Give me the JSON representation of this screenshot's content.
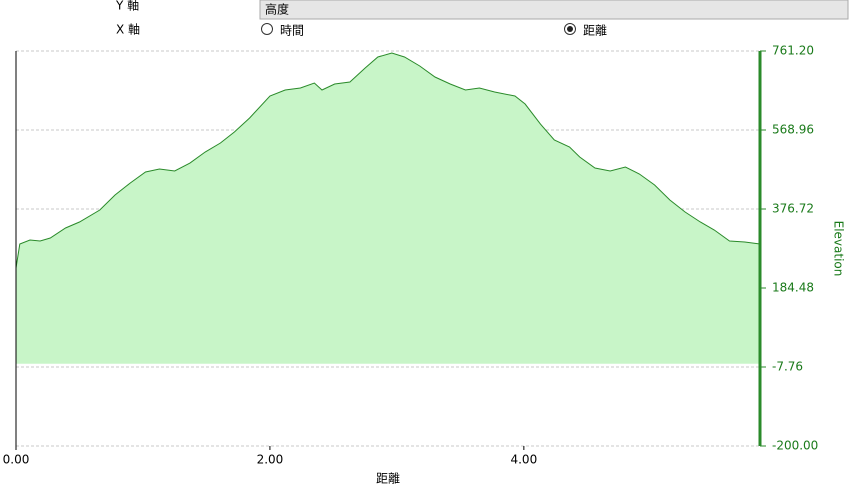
{
  "controls": {
    "y_axis": {
      "label": "Y 軸",
      "value": "高度"
    },
    "x_axis": {
      "label": "X 軸",
      "options": [
        "時間",
        "距離"
      ],
      "selected": 1
    }
  },
  "chart_data": {
    "type": "area",
    "xlabel": "距離",
    "ylabel": "Elevation",
    "color": "#2a8a2a",
    "fill": "#c8f5c8",
    "grid": true,
    "x": [
      0,
      0.03,
      0.11,
      0.19,
      0.27,
      0.39,
      0.5,
      0.66,
      0.78,
      0.9,
      1.02,
      1.13,
      1.25,
      1.37,
      1.49,
      1.61,
      1.72,
      1.84,
      2.0,
      2.12,
      2.24,
      2.35,
      2.41,
      2.51,
      2.63,
      2.75,
      2.85,
      2.96,
      3.06,
      3.18,
      3.3,
      3.42,
      3.54,
      3.65,
      3.77,
      3.93,
      4.01,
      4.13,
      4.24,
      4.36,
      4.44,
      4.56,
      4.68,
      4.8,
      4.91,
      5.03,
      5.15,
      5.27,
      5.39,
      5.5,
      5.62,
      5.74,
      5.86
    ],
    "values": [
      233.1,
      291.5,
      301.3,
      298.9,
      306.1,
      330.5,
      345.1,
      374.3,
      410.8,
      440.0,
      466.8,
      474.1,
      469.2,
      488.6,
      515.4,
      537.3,
      564.1,
      598.2,
      651.7,
      666.3,
      671.2,
      683.3,
      666.3,
      680.9,
      685.8,
      719.8,
      746.6,
      756.3,
      746.6,
      724.7,
      697.9,
      680.9,
      666.3,
      671.2,
      661.4,
      651.7,
      632.2,
      583.6,
      544.6,
      527.6,
      503.3,
      476.5,
      469.2,
      478.9,
      461.9,
      435.1,
      398.6,
      369.4,
      345.1,
      325.6,
      298.8,
      296.4,
      291.5
    ],
    "xlim": [
      0,
      5.86
    ],
    "xticks": [
      {
        "value": 0,
        "label": "0.00"
      },
      {
        "value": 2,
        "label": "2.00"
      },
      {
        "value": 4,
        "label": "4.00"
      }
    ],
    "ylim": [
      -200,
      761.2
    ],
    "yticks": [
      {
        "value": 761.2,
        "label": "761.20"
      },
      {
        "value": 568.96,
        "label": "568.96"
      },
      {
        "value": 376.72,
        "label": "376.72"
      },
      {
        "value": 184.48,
        "label": "184.48"
      },
      {
        "value": -7.76,
        "label": "-7.76"
      },
      {
        "value": -200,
        "label": "-200.00"
      }
    ]
  }
}
